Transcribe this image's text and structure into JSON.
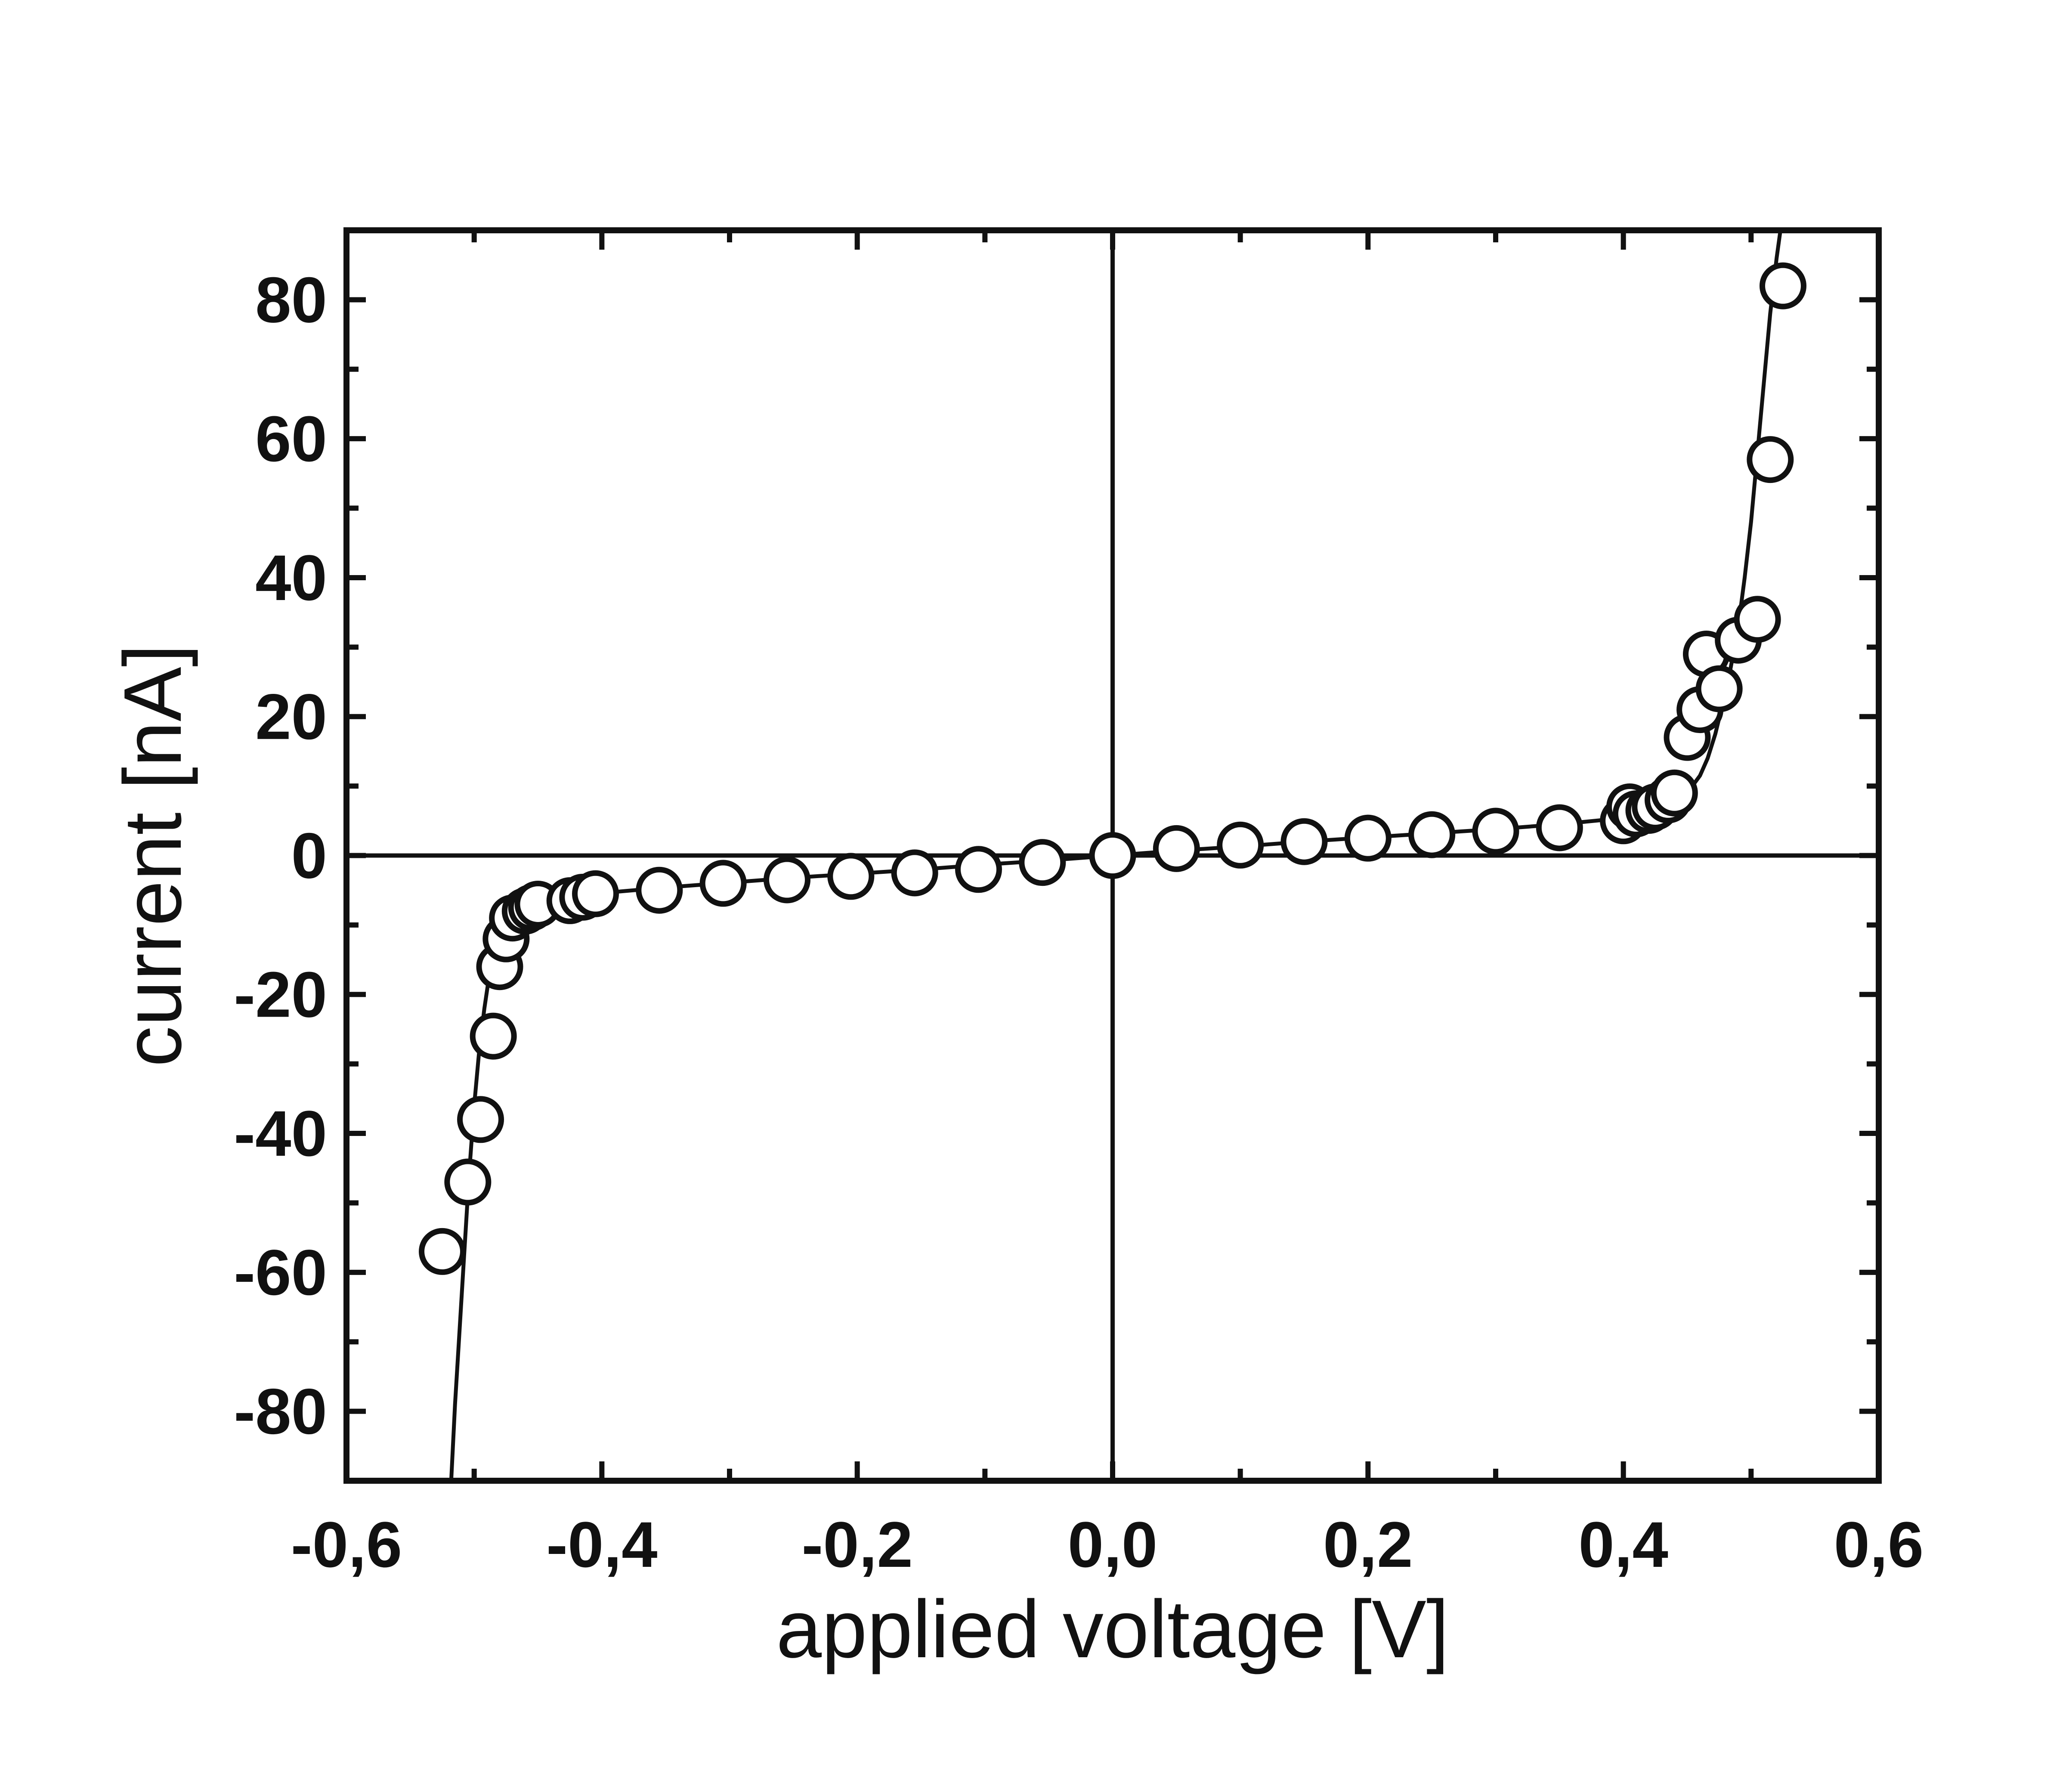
{
  "chart_data": {
    "type": "scatter",
    "title": "",
    "xlabel": "applied voltage [V]",
    "ylabel": "current [nA]",
    "xlim": [
      -0.6,
      0.6
    ],
    "ylim": [
      -90,
      90
    ],
    "grid": false,
    "legend": "none",
    "x_ticks": [
      -0.6,
      -0.4,
      -0.2,
      0.0,
      0.2,
      0.4,
      0.6
    ],
    "x_tick_labels": [
      "-0,6",
      "-0,4",
      "-0,2",
      "0,0",
      "0,2",
      "0,4",
      "0,6"
    ],
    "y_ticks": [
      -80,
      -60,
      -40,
      -20,
      0,
      20,
      40,
      60,
      80
    ],
    "y_tick_labels": [
      "-80",
      "-60",
      "-40",
      "-20",
      "0",
      "20",
      "40",
      "60",
      "80"
    ],
    "reference_lines": {
      "x": 0,
      "y": 0
    },
    "marker": "open-circle",
    "series": [
      {
        "kind": "points",
        "x": [
          -0.525,
          -0.505,
          -0.495,
          -0.485,
          -0.48,
          -0.475,
          -0.47,
          -0.46,
          -0.455,
          -0.45,
          -0.425,
          -0.415,
          -0.405,
          -0.355,
          -0.305,
          -0.255,
          -0.205,
          -0.155,
          -0.105,
          -0.055,
          0.0,
          0.05,
          0.1,
          0.15,
          0.2,
          0.25,
          0.3,
          0.35,
          0.4,
          0.405,
          0.41,
          0.42,
          0.425,
          0.435,
          0.44,
          0.45,
          0.46,
          0.465,
          0.475,
          0.49,
          0.505,
          0.515,
          0.525
        ],
        "y": [
          -57,
          -47,
          -38,
          -26,
          -16,
          -12,
          -9,
          -8,
          -7.5,
          -7,
          -6.5,
          -6,
          -5.5,
          -5,
          -4,
          -3.5,
          -3,
          -2.5,
          -2,
          -1,
          0,
          1,
          1.5,
          2,
          2.5,
          3,
          3.5,
          4,
          5,
          7,
          6,
          6.5,
          7,
          8,
          9,
          17,
          21,
          29,
          24,
          31,
          34,
          57,
          82
        ]
      },
      {
        "kind": "fit-line",
        "x": [
          -0.518,
          -0.515,
          -0.512,
          -0.508,
          -0.504,
          -0.5,
          -0.496,
          -0.492,
          -0.488,
          -0.484,
          -0.48,
          -0.476,
          -0.472,
          -0.468,
          -0.464,
          -0.46,
          -0.45,
          -0.44,
          -0.42,
          -0.4,
          -0.35,
          -0.3,
          -0.25,
          -0.2,
          -0.15,
          -0.1,
          -0.05,
          0.0,
          0.05,
          0.1,
          0.15,
          0.2,
          0.25,
          0.3,
          0.35,
          0.4,
          0.42,
          0.44,
          0.45,
          0.46,
          0.466,
          0.472,
          0.478,
          0.484,
          0.49,
          0.495,
          0.5,
          0.505,
          0.51,
          0.515,
          0.52,
          0.523
        ],
        "y": [
          -90,
          -79,
          -70,
          -58,
          -46,
          -36,
          -28,
          -22,
          -17,
          -13.5,
          -11,
          -9.5,
          -8.5,
          -8,
          -7.5,
          -7.2,
          -6.7,
          -6.3,
          -5.8,
          -5.4,
          -4.6,
          -3.9,
          -3.2,
          -2.6,
          -2,
          -1.3,
          -0.7,
          0,
          0.7,
          1.3,
          2,
          2.6,
          3.2,
          3.8,
          4.5,
          5.4,
          6,
          7.5,
          9,
          11.5,
          14,
          17.5,
          22,
          27,
          33,
          40,
          48,
          58,
          68,
          78,
          86,
          90
        ]
      }
    ]
  }
}
